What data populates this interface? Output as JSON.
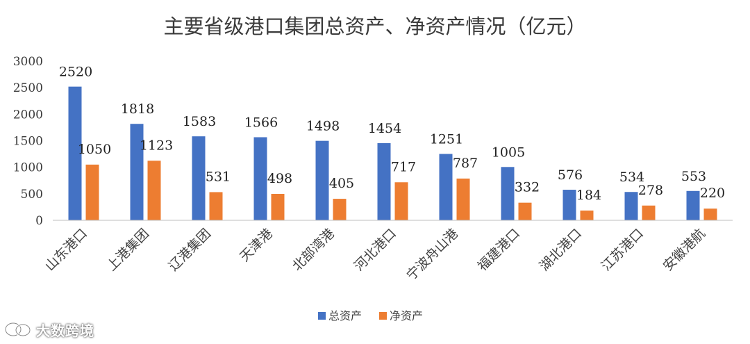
{
  "chart_data": {
    "type": "bar",
    "title": "主要省级港口集团总资产、净资产情况（亿元）",
    "categories": [
      "山东港口",
      "上港集团",
      "辽港集团",
      "天津港",
      "北部湾港",
      "河北港口",
      "宁波舟山港",
      "福建港口",
      "湖北港口",
      "江苏港口",
      "安徽港航"
    ],
    "series": [
      {
        "name": "总资产",
        "color": "#4472c4",
        "values": [
          2520,
          1818,
          1583,
          1566,
          1498,
          1454,
          1251,
          1005,
          576,
          534,
          553
        ]
      },
      {
        "name": "净资产",
        "color": "#ed7d31",
        "values": [
          1050,
          1123,
          531,
          498,
          405,
          717,
          787,
          332,
          184,
          278,
          220
        ]
      }
    ],
    "ylim": [
      0,
      3000
    ],
    "yticks": [
      0,
      500,
      1000,
      1500,
      2000,
      2500,
      3000
    ],
    "legend_position": "bottom",
    "grid": false,
    "xlabel": "",
    "ylabel": ""
  },
  "watermark": {
    "text": "大数跨境",
    "icon": "wechat-eye-icon"
  }
}
